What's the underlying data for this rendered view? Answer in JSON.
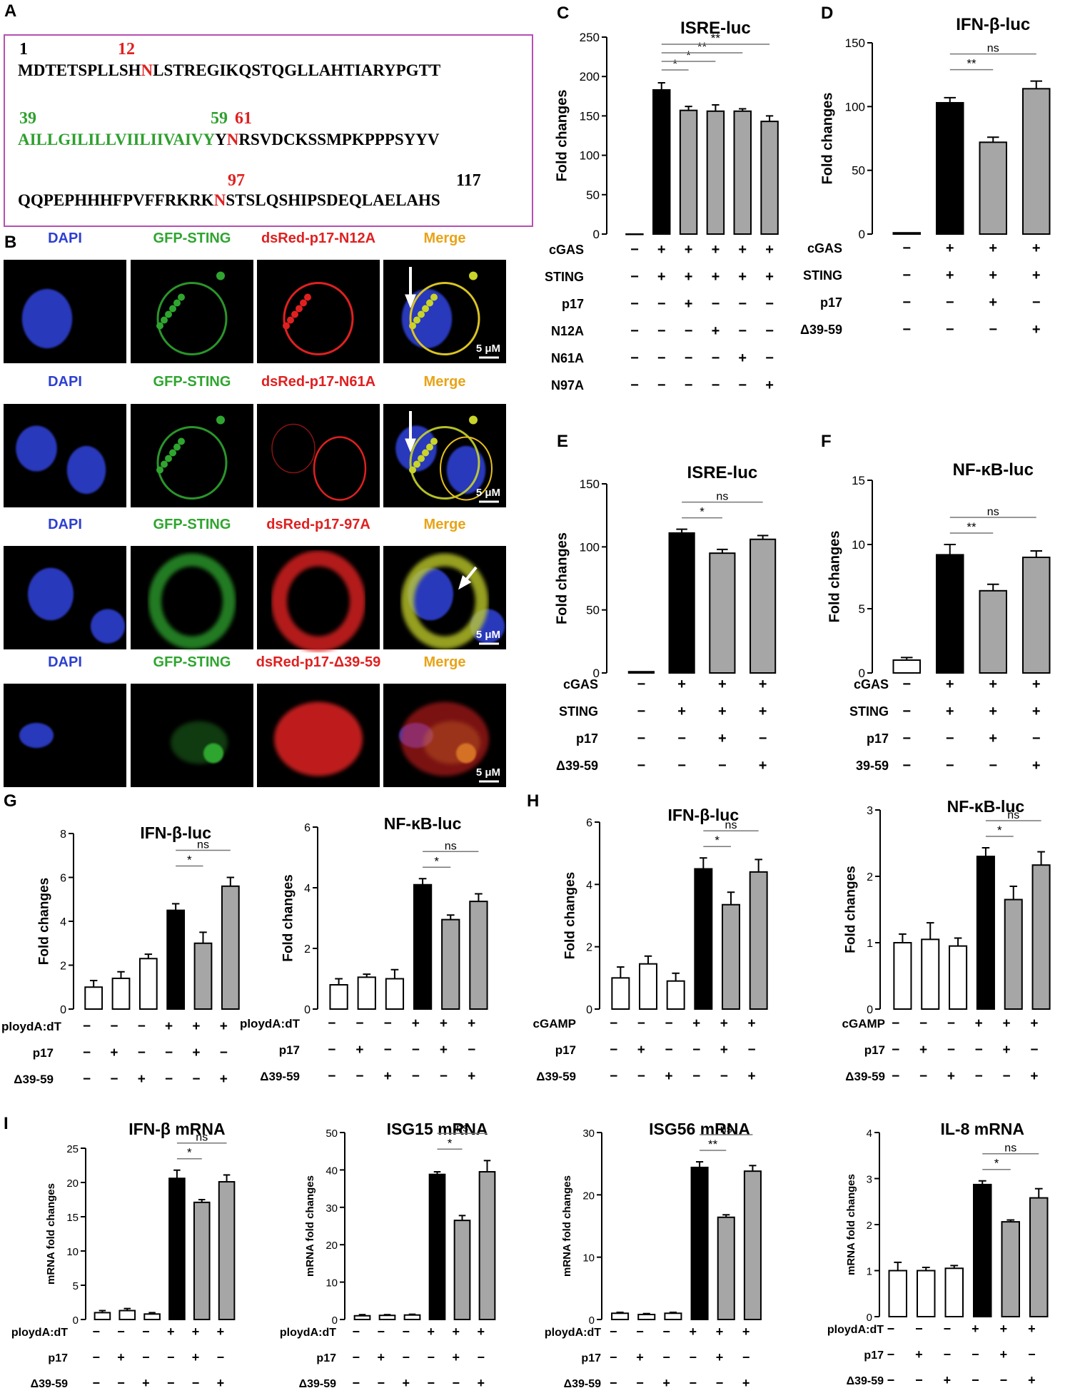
{
  "panel_A": {
    "label": "A",
    "n1": "1",
    "n12": "12",
    "line1_a": "MDTETSPLLSH",
    "line1_b": "N",
    "line1_c": "LSTREGIKQSTQGLLAHTIARYPGTT",
    "n39": "39",
    "n59": "59",
    "n61": "61",
    "line2_a": "AILLGILILLVIILIIVAIVY",
    "line2_b": "Y",
    "line2_c": "N",
    "line2_d": "RSVDCKSSMPKPPPSYYV",
    "n97": "97",
    "n117": "117",
    "line3_a": "QQPEPHHHFPVFFRKRK",
    "line3_b": "N",
    "line3_c": "STSLQSHIPSDEQLAELAHS"
  },
  "panel_B": {
    "label": "B",
    "scale": "5 μM",
    "rows": [
      {
        "c1": "DAPI",
        "c2": "GFP-STING",
        "c3": "dsRed-p17-N12A",
        "c4": "Merge"
      },
      {
        "c1": "DAPI",
        "c2": "GFP-STING",
        "c3": "dsRed-p17-N61A",
        "c4": "Merge"
      },
      {
        "c1": "DAPI",
        "c2": "GFP-STING",
        "c3": "dsRed-p17-97A",
        "c4": "Merge"
      },
      {
        "c1": "DAPI",
        "c2": "GFP-STING",
        "c3": "dsRed-p17-Δ39-59",
        "c4": "Merge"
      }
    ]
  },
  "chart_data": [
    {
      "id": "C",
      "type": "bar",
      "title": "ISRE-luc",
      "ylabel": "Fold changes",
      "ylim": [
        0,
        250
      ],
      "yticks": [
        0,
        50,
        100,
        150,
        200,
        250
      ],
      "values": [
        0,
        183,
        157,
        156,
        156,
        143
      ],
      "errors": [
        0,
        9,
        5,
        8,
        3,
        7
      ],
      "fills": [
        "w",
        "b",
        "g",
        "g",
        "g",
        "g"
      ],
      "sig": [
        {
          "a": 1,
          "b": 2,
          "t": "*"
        },
        {
          "a": 1,
          "b": 3,
          "t": "*"
        },
        {
          "a": 1,
          "b": 4,
          "t": "**"
        },
        {
          "a": 1,
          "b": 5,
          "t": "**"
        }
      ],
      "rows": [
        {
          "label": "cGAS",
          "signs": [
            "−",
            "+",
            "+",
            "+",
            "+",
            "+"
          ]
        },
        {
          "label": "STING",
          "signs": [
            "−",
            "+",
            "+",
            "+",
            "+",
            "+"
          ]
        },
        {
          "label": "p17",
          "signs": [
            "−",
            "−",
            "+",
            "−",
            "−",
            "−"
          ]
        },
        {
          "label": "N12A",
          "signs": [
            "−",
            "−",
            "−",
            "+",
            "−",
            "−"
          ]
        },
        {
          "label": "N61A",
          "signs": [
            "−",
            "−",
            "−",
            "−",
            "+",
            "−"
          ]
        },
        {
          "label": "N97A",
          "signs": [
            "−",
            "−",
            "−",
            "−",
            "−",
            "+"
          ]
        }
      ]
    },
    {
      "id": "D",
      "type": "bar",
      "title": "IFN-β-luc",
      "ylabel": "Fold changes",
      "ylim": [
        0,
        150
      ],
      "yticks": [
        0,
        50,
        100,
        150
      ],
      "values": [
        1,
        103,
        72,
        114
      ],
      "errors": [
        0.5,
        4,
        4,
        6
      ],
      "fills": [
        "w",
        "b",
        "g",
        "g"
      ],
      "sig": [
        {
          "a": 1,
          "b": 2,
          "t": "**"
        },
        {
          "a": 1,
          "b": 3,
          "t": "ns"
        }
      ],
      "rows": [
        {
          "label": "cGAS",
          "signs": [
            "−",
            "+",
            "+",
            "+"
          ]
        },
        {
          "label": "STING",
          "signs": [
            "−",
            "+",
            "+",
            "+"
          ]
        },
        {
          "label": "p17",
          "signs": [
            "−",
            "−",
            "+",
            "−"
          ]
        },
        {
          "label": "Δ39-59",
          "signs": [
            "−",
            "−",
            "−",
            "+"
          ]
        }
      ]
    },
    {
      "id": "E",
      "type": "bar",
      "title": "ISRE-luc",
      "ylabel": "Fold changes",
      "ylim": [
        0,
        150
      ],
      "yticks": [
        0,
        50,
        100,
        150
      ],
      "values": [
        1,
        111,
        95,
        106
      ],
      "errors": [
        0.5,
        3,
        3,
        3
      ],
      "fills": [
        "w",
        "b",
        "g",
        "g"
      ],
      "sig": [
        {
          "a": 1,
          "b": 2,
          "t": "*"
        },
        {
          "a": 1,
          "b": 3,
          "t": "ns"
        }
      ],
      "rows": [
        {
          "label": "cGAS",
          "signs": [
            "−",
            "+",
            "+",
            "+"
          ]
        },
        {
          "label": "STING",
          "signs": [
            "−",
            "+",
            "+",
            "+"
          ]
        },
        {
          "label": "p17",
          "signs": [
            "−",
            "−",
            "+",
            "−"
          ]
        },
        {
          "label": "Δ39-59",
          "signs": [
            "−",
            "−",
            "−",
            "+"
          ]
        }
      ]
    },
    {
      "id": "F",
      "type": "bar",
      "title": "NF-κB-luc",
      "ylabel": "Fold changes",
      "ylim": [
        0,
        15
      ],
      "yticks": [
        0,
        5,
        10,
        15
      ],
      "values": [
        1,
        9.2,
        6.4,
        9.0
      ],
      "errors": [
        0.2,
        0.8,
        0.5,
        0.5
      ],
      "fills": [
        "w",
        "b",
        "g",
        "g"
      ],
      "sig": [
        {
          "a": 1,
          "b": 2,
          "t": "**"
        },
        {
          "a": 1,
          "b": 3,
          "t": "ns"
        }
      ],
      "rows": [
        {
          "label": "cGAS",
          "signs": [
            "−",
            "+",
            "+",
            "+"
          ]
        },
        {
          "label": "STING",
          "signs": [
            "−",
            "+",
            "+",
            "+"
          ]
        },
        {
          "label": "p17",
          "signs": [
            "−",
            "−",
            "+",
            "−"
          ]
        },
        {
          "label": "39-59",
          "signs": [
            "−",
            "−",
            "−",
            "+"
          ]
        }
      ]
    },
    {
      "id": "G1",
      "type": "bar",
      "title": "IFN-β-luc",
      "ylabel": "Fold changes",
      "ylim": [
        0,
        8
      ],
      "yticks": [
        0,
        2,
        4,
        6,
        8
      ],
      "values": [
        1.0,
        1.4,
        2.3,
        4.5,
        3.0,
        5.6
      ],
      "errors": [
        0.3,
        0.3,
        0.2,
        0.3,
        0.5,
        0.4
      ],
      "fills": [
        "w",
        "w",
        "w",
        "b",
        "g",
        "g"
      ],
      "sig": [
        {
          "a": 3,
          "b": 4,
          "t": "*"
        },
        {
          "a": 3,
          "b": 5,
          "t": "ns"
        }
      ],
      "rows": [
        {
          "label": "ploydA:dT",
          "signs": [
            "−",
            "−",
            "−",
            "+",
            "+",
            "+"
          ]
        },
        {
          "label": "p17",
          "signs": [
            "−",
            "+",
            "−",
            "−",
            "+",
            "−"
          ]
        },
        {
          "label": "Δ39-59",
          "signs": [
            "−",
            "−",
            "+",
            "−",
            "−",
            "+"
          ]
        }
      ]
    },
    {
      "id": "G2",
      "type": "bar",
      "title": "NF-κB-luc",
      "ylabel": "Fold changes",
      "ylim": [
        0,
        6
      ],
      "yticks": [
        0,
        2,
        4,
        6
      ],
      "values": [
        0.8,
        1.05,
        1.0,
        4.1,
        2.95,
        3.55
      ],
      "errors": [
        0.2,
        0.1,
        0.3,
        0.2,
        0.15,
        0.25
      ],
      "fills": [
        "w",
        "w",
        "w",
        "b",
        "g",
        "g"
      ],
      "sig": [
        {
          "a": 3,
          "b": 4,
          "t": "*"
        },
        {
          "a": 3,
          "b": 5,
          "t": "ns"
        }
      ],
      "rows": [
        {
          "label": "ploydA:dT",
          "signs": [
            "−",
            "−",
            "−",
            "+",
            "+",
            "+"
          ]
        },
        {
          "label": "p17",
          "signs": [
            "−",
            "+",
            "−",
            "−",
            "+",
            "−"
          ]
        },
        {
          "label": "Δ39-59",
          "signs": [
            "−",
            "−",
            "+",
            "−",
            "−",
            "+"
          ]
        }
      ]
    },
    {
      "id": "H1",
      "type": "bar",
      "title": "IFN-β-luc",
      "ylabel": "Fold changes",
      "ylim": [
        0,
        6
      ],
      "yticks": [
        0,
        2,
        4,
        6
      ],
      "values": [
        1.0,
        1.45,
        0.9,
        4.5,
        3.35,
        4.4
      ],
      "errors": [
        0.35,
        0.25,
        0.25,
        0.35,
        0.4,
        0.4
      ],
      "fills": [
        "w",
        "w",
        "w",
        "b",
        "g",
        "g"
      ],
      "sig": [
        {
          "a": 3,
          "b": 4,
          "t": "*"
        },
        {
          "a": 3,
          "b": 5,
          "t": "ns"
        }
      ],
      "rows": [
        {
          "label": "cGAMP",
          "signs": [
            "−",
            "−",
            "−",
            "+",
            "+",
            "+"
          ]
        },
        {
          "label": "p17",
          "signs": [
            "−",
            "+",
            "−",
            "−",
            "+",
            "−"
          ]
        },
        {
          "label": "Δ39-59",
          "signs": [
            "−",
            "−",
            "+",
            "−",
            "−",
            "+"
          ]
        }
      ]
    },
    {
      "id": "H2",
      "type": "bar",
      "title": "NF-κB-luc",
      "ylabel": "Fold changes",
      "ylim": [
        0,
        3
      ],
      "yticks": [
        0,
        1,
        2,
        3
      ],
      "values": [
        1.0,
        1.05,
        0.95,
        2.3,
        1.65,
        2.17
      ],
      "errors": [
        0.13,
        0.25,
        0.12,
        0.13,
        0.2,
        0.2
      ],
      "fills": [
        "w",
        "w",
        "w",
        "b",
        "g",
        "g"
      ],
      "sig": [
        {
          "a": 3,
          "b": 4,
          "t": "*"
        },
        {
          "a": 3,
          "b": 5,
          "t": "ns"
        }
      ],
      "rows": [
        {
          "label": "cGAMP",
          "signs": [
            "−",
            "−",
            "−",
            "+",
            "+",
            "+"
          ]
        },
        {
          "label": "p17",
          "signs": [
            "−",
            "+",
            "−",
            "−",
            "+",
            "−"
          ]
        },
        {
          "label": "Δ39-59",
          "signs": [
            "−",
            "−",
            "+",
            "−",
            "−",
            "+"
          ]
        }
      ]
    },
    {
      "id": "I1",
      "type": "bar",
      "title": "IFN-β mRNA",
      "ylabel": "mRNA fold changes",
      "ylim": [
        0,
        25
      ],
      "yticks": [
        0,
        5,
        10,
        15,
        20,
        25
      ],
      "values": [
        1.0,
        1.3,
        0.8,
        20.6,
        17.1,
        20.1
      ],
      "errors": [
        0.3,
        0.3,
        0.2,
        1.2,
        0.4,
        1.0
      ],
      "fills": [
        "w",
        "w",
        "w",
        "b",
        "g",
        "g"
      ],
      "sig": [
        {
          "a": 3,
          "b": 4,
          "t": "*"
        },
        {
          "a": 3,
          "b": 5,
          "t": "ns"
        }
      ],
      "rows": [
        {
          "label": "ploydA:dT",
          "signs": [
            "−",
            "−",
            "−",
            "+",
            "+",
            "+"
          ]
        },
        {
          "label": "p17",
          "signs": [
            "−",
            "+",
            "−",
            "−",
            "+",
            "−"
          ]
        },
        {
          "label": "Δ39-59",
          "signs": [
            "−",
            "−",
            "+",
            "−",
            "−",
            "+"
          ]
        }
      ]
    },
    {
      "id": "I2",
      "type": "bar",
      "title": "ISG15 mRNA",
      "ylabel": "mRNA fold changes",
      "ylim": [
        0,
        50
      ],
      "yticks": [
        0,
        10,
        20,
        30,
        40,
        50
      ],
      "values": [
        1.0,
        1.1,
        1.2,
        38.8,
        26.5,
        39.5
      ],
      "errors": [
        0.3,
        0.2,
        0.2,
        0.7,
        1.3,
        3.0
      ],
      "fills": [
        "w",
        "w",
        "w",
        "b",
        "g",
        "g"
      ],
      "sig": [
        {
          "a": 3,
          "b": 4,
          "t": "*"
        },
        {
          "a": 3,
          "b": 5,
          "t": "ns"
        }
      ],
      "rows": [
        {
          "label": "ploydA:dT",
          "signs": [
            "−",
            "−",
            "−",
            "+",
            "+",
            "+"
          ]
        },
        {
          "label": "p17",
          "signs": [
            "−",
            "+",
            "−",
            "−",
            "+",
            "−"
          ]
        },
        {
          "label": "Δ39-59",
          "signs": [
            "−",
            "−",
            "+",
            "−",
            "−",
            "+"
          ]
        }
      ]
    },
    {
      "id": "I3",
      "type": "bar",
      "title": "ISG56 mRNA",
      "ylabel": "mRNA fold changes",
      "ylim": [
        0,
        30
      ],
      "yticks": [
        0,
        10,
        20,
        30
      ],
      "values": [
        1.0,
        0.8,
        1.0,
        24.4,
        16.4,
        23.8
      ],
      "errors": [
        0.15,
        0.15,
        0.15,
        0.9,
        0.4,
        0.9
      ],
      "fills": [
        "w",
        "w",
        "w",
        "b",
        "g",
        "g"
      ],
      "sig": [
        {
          "a": 3,
          "b": 4,
          "t": "**"
        },
        {
          "a": 3,
          "b": 5,
          "t": "ns"
        }
      ],
      "rows": [
        {
          "label": "ploydA:dT",
          "signs": [
            "−",
            "−",
            "−",
            "+",
            "+",
            "+"
          ]
        },
        {
          "label": "p17",
          "signs": [
            "−",
            "+",
            "−",
            "−",
            "+",
            "−"
          ]
        },
        {
          "label": "Δ39-59",
          "signs": [
            "−",
            "−",
            "+",
            "−",
            "−",
            "+"
          ]
        }
      ]
    },
    {
      "id": "I4",
      "type": "bar",
      "title": "IL-8 mRNA",
      "ylabel": "mRNA fold changes",
      "ylim": [
        0,
        4
      ],
      "yticks": [
        0,
        1,
        2,
        3,
        4
      ],
      "values": [
        1.0,
        1.0,
        1.05,
        2.87,
        2.06,
        2.58
      ],
      "errors": [
        0.18,
        0.07,
        0.06,
        0.08,
        0.04,
        0.2
      ],
      "fills": [
        "w",
        "w",
        "w",
        "b",
        "g",
        "g"
      ],
      "sig": [
        {
          "a": 3,
          "b": 4,
          "t": "*"
        },
        {
          "a": 3,
          "b": 5,
          "t": "ns"
        }
      ],
      "rows": [
        {
          "label": "ploydA:dT",
          "signs": [
            "−",
            "−",
            "−",
            "+",
            "+",
            "+"
          ]
        },
        {
          "label": "p17",
          "signs": [
            "−",
            "+",
            "−",
            "−",
            "+",
            "−"
          ]
        },
        {
          "label": "Δ39-59",
          "signs": [
            "−",
            "−",
            "+",
            "−",
            "−",
            "+"
          ]
        }
      ]
    }
  ],
  "colors": {
    "black_bar": "#000000",
    "gray_bar": "#a6a6a6",
    "white_bar": "#ffffff",
    "dapi": "#2d3fd0",
    "gfp": "#2fa52f",
    "dsred": "#e02020",
    "merge": "#e8a317",
    "seq_green": "#2ea02e",
    "seq_red": "#e02020",
    "box": "#b64fb4"
  }
}
